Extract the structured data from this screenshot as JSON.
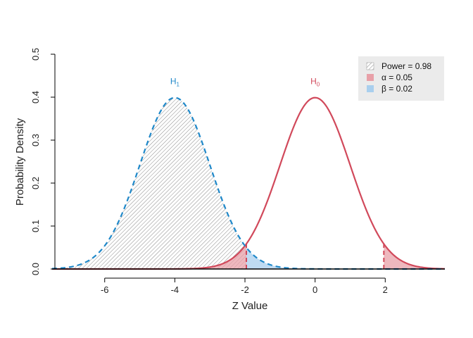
{
  "chart_data": {
    "type": "area",
    "xlabel": "Z Value",
    "ylabel": "Probability Density",
    "xlim": [
      -7.5,
      3.7
    ],
    "ylim": [
      0,
      0.5
    ],
    "x_ticks": [
      -6,
      -4,
      -2,
      0,
      2
    ],
    "x_tick_labels": [
      "-6",
      "-4",
      "-2",
      "0",
      "2"
    ],
    "y_ticks": [
      0,
      0.1,
      0.2,
      0.3,
      0.4,
      0.5
    ],
    "y_tick_labels": [
      "0.0",
      "0.1",
      "0.2",
      "0.3",
      "0.4",
      "0.5"
    ],
    "grid": false,
    "legend_position": "top-right",
    "critical_values": [
      -1.96,
      1.96
    ],
    "series": [
      {
        "name_main": "H",
        "name_sub": "0",
        "distribution": "normal",
        "mean": 0,
        "sd": 1,
        "peak": 0.399,
        "color": "#d1495b",
        "line_style": "solid",
        "label_x": 0,
        "label_y": 0.45
      },
      {
        "name_main": "H",
        "name_sub": "1",
        "distribution": "normal",
        "mean": -4,
        "sd": 1,
        "peak": 0.399,
        "color": "#1f88c9",
        "line_style": "dashed",
        "label_x": -4,
        "label_y": 0.45
      }
    ],
    "shaded_regions": [
      {
        "region": "power",
        "curve": "H1",
        "from": -7.5,
        "to": -1.96,
        "fill": "hatched",
        "color": "#999999"
      },
      {
        "region": "beta",
        "curve": "H1",
        "from": -1.96,
        "to": 3.7,
        "fill": "solid",
        "color": "#a9cfee"
      },
      {
        "region": "alpha",
        "curve": "H0",
        "from": -7.5,
        "to": -1.96,
        "fill": "solid",
        "color": "#e8a0a8"
      },
      {
        "region": "alpha",
        "curve": "H0",
        "from": 1.96,
        "to": 3.7,
        "fill": "solid",
        "color": "#e8a0a8"
      }
    ],
    "legend": [
      {
        "label": "Power = 0.98",
        "swatch": "hatched",
        "color": "#999999"
      },
      {
        "label": "α = 0.05",
        "swatch": "solid",
        "color": "#e8a0a8"
      },
      {
        "label": "β = 0.02",
        "swatch": "solid",
        "color": "#a9cfee"
      }
    ]
  }
}
